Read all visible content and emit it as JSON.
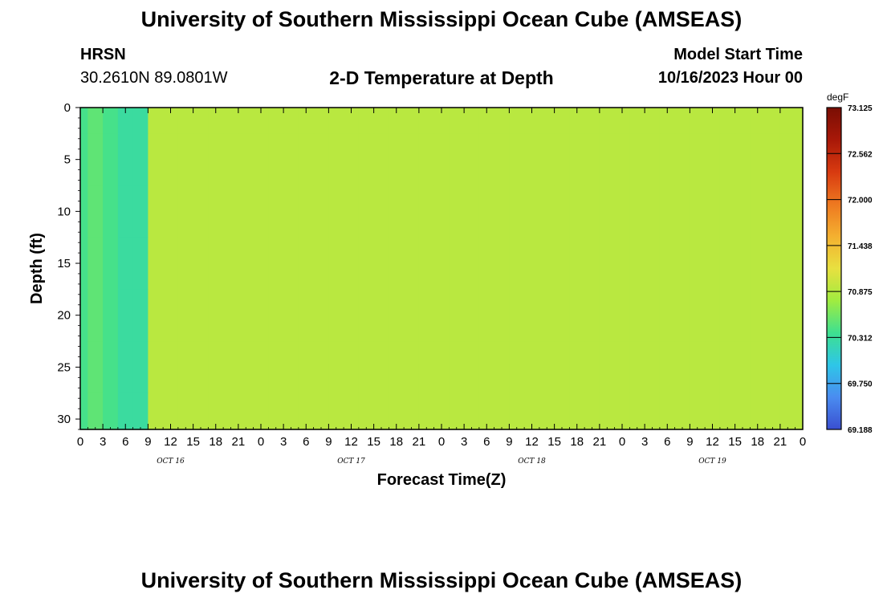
{
  "header": {
    "title": "University of Southern Mississippi Ocean Cube (AMSEAS)",
    "station": "HRSN",
    "coords": "30.2610N  89.0801W",
    "subtitle": "2-D Temperature at Depth",
    "start_label": "Model Start Time",
    "start_value": "10/16/2023 Hour 00"
  },
  "footer": {
    "title": "University of Southern Mississippi Ocean Cube (AMSEAS)"
  },
  "colors": {
    "scale": [
      "#3a4fd0",
      "#4a8cf0",
      "#2ec6e8",
      "#3ee090",
      "#a0ec40",
      "#e8e040",
      "#f4b030",
      "#ee7820",
      "#d83a10",
      "#a81808",
      "#7a0e04"
    ],
    "frame": "#000000"
  },
  "chart_data": {
    "type": "heatmap",
    "title": "2-D Temperature at Depth",
    "xlabel": "Forecast Time(Z)",
    "ylabel": "Depth (ft)",
    "x_range_hours": [
      0,
      96
    ],
    "y_range_ft": [
      0,
      31
    ],
    "x_tick_labels": [
      "0",
      "3",
      "6",
      "9",
      "12",
      "15",
      "18",
      "21",
      "0",
      "3",
      "6",
      "9",
      "12",
      "15",
      "18",
      "21",
      "0",
      "3",
      "6",
      "9",
      "12",
      "15",
      "18",
      "21",
      "0",
      "3",
      "6",
      "9",
      "12",
      "15",
      "18",
      "21",
      "0"
    ],
    "day_labels": [
      "OCT 16",
      "OCT 17",
      "OCT 18",
      "OCT 19"
    ],
    "y_ticks": [
      0,
      5,
      10,
      15,
      20,
      25,
      30
    ],
    "colorbar": {
      "unit": "degF",
      "min": 69.188,
      "max": 73.125,
      "tick_labels": [
        "73.125",
        "72.562",
        "72.000",
        "71.438",
        "70.875",
        "70.312",
        "69.750",
        "69.188"
      ]
    },
    "grid": false,
    "legend": "colorbar right",
    "hours": [
      0,
      2,
      4,
      6,
      8,
      10,
      12,
      14,
      16,
      18,
      20,
      22,
      24,
      26,
      28,
      30,
      32,
      34,
      36,
      38,
      40,
      42,
      44,
      46,
      48,
      50,
      52,
      54,
      56,
      58,
      60,
      62,
      64,
      66,
      68,
      70,
      72,
      74,
      76,
      78,
      80,
      82,
      84,
      86,
      88,
      90,
      92,
      94,
      96
    ],
    "depths_ft": [
      0,
      5,
      10,
      15,
      20,
      25,
      30
    ],
    "temperature_degF": [
      [
        70.4,
        70.5,
        70.4,
        70.3,
        70.3,
        70.9,
        70.9,
        70.9,
        70.9,
        70.9,
        70.9,
        70.9,
        70.9,
        70.9,
        70.9,
        70.9,
        70.9,
        70.9,
        70.9,
        70.9,
        70.9,
        70.9,
        70.9,
        70.9,
        70.9,
        70.9,
        70.9,
        70.9,
        70.9,
        70.9,
        70.9,
        70.9,
        70.9,
        70.9,
        70.9,
        70.9,
        70.9,
        70.9,
        70.9,
        70.9,
        70.9,
        70.9,
        70.9,
        70.9,
        70.9,
        70.9,
        70.9,
        70.9,
        70.9
      ],
      [
        70.4,
        70.5,
        70.4,
        70.3,
        70.3,
        70.9,
        70.9,
        70.9,
        70.9,
        70.9,
        70.9,
        70.9,
        70.9,
        70.9,
        70.9,
        70.9,
        70.9,
        70.9,
        70.9,
        70.9,
        70.9,
        70.9,
        70.9,
        70.9,
        70.9,
        70.9,
        70.9,
        70.9,
        70.9,
        70.9,
        70.9,
        70.9,
        70.9,
        70.9,
        70.9,
        70.9,
        70.9,
        70.9,
        70.9,
        70.9,
        70.9,
        70.9,
        70.9,
        70.9,
        70.9,
        70.9,
        70.9,
        70.9,
        70.9
      ],
      [
        70.4,
        70.5,
        70.4,
        70.3,
        70.3,
        70.9,
        70.9,
        70.9,
        70.9,
        70.9,
        70.9,
        70.9,
        70.9,
        70.9,
        70.9,
        70.9,
        70.9,
        70.9,
        70.9,
        70.9,
        70.9,
        70.9,
        70.9,
        70.9,
        70.9,
        70.9,
        70.9,
        70.9,
        70.9,
        70.9,
        70.9,
        70.9,
        70.9,
        70.9,
        70.9,
        70.9,
        70.9,
        70.9,
        70.9,
        70.9,
        70.9,
        70.9,
        70.9,
        70.9,
        70.9,
        70.9,
        70.9,
        70.9,
        70.9
      ],
      [
        70.4,
        70.5,
        70.4,
        70.3,
        70.3,
        70.9,
        70.9,
        70.9,
        70.9,
        70.9,
        70.9,
        70.9,
        70.9,
        70.9,
        70.9,
        70.9,
        70.9,
        70.9,
        70.9,
        70.9,
        70.9,
        70.9,
        70.9,
        70.9,
        70.9,
        70.9,
        70.9,
        70.9,
        70.9,
        70.9,
        70.9,
        70.9,
        70.9,
        70.9,
        70.9,
        70.9,
        70.9,
        70.9,
        70.9,
        70.9,
        70.9,
        70.9,
        70.9,
        70.9,
        70.9,
        70.9,
        70.9,
        70.9,
        70.9
      ],
      [
        70.4,
        70.5,
        70.4,
        70.3,
        70.3,
        70.9,
        70.9,
        70.9,
        70.9,
        70.9,
        70.9,
        70.9,
        70.9,
        70.9,
        70.9,
        70.9,
        70.9,
        70.9,
        70.9,
        70.9,
        70.9,
        70.9,
        70.9,
        70.9,
        70.9,
        70.9,
        70.9,
        70.9,
        70.9,
        70.9,
        70.9,
        70.9,
        70.9,
        70.9,
        70.9,
        70.9,
        70.9,
        70.9,
        70.9,
        70.9,
        70.9,
        70.9,
        70.9,
        70.9,
        70.9,
        70.9,
        70.9,
        70.9,
        70.9
      ],
      [
        70.4,
        70.5,
        70.4,
        70.3,
        70.3,
        70.9,
        70.9,
        70.9,
        70.9,
        70.9,
        70.9,
        70.9,
        70.9,
        70.9,
        70.9,
        70.9,
        70.9,
        70.9,
        70.9,
        70.9,
        70.9,
        70.9,
        70.9,
        70.9,
        70.9,
        70.9,
        70.9,
        70.9,
        70.9,
        70.9,
        70.9,
        70.9,
        70.9,
        70.9,
        70.9,
        70.9,
        70.9,
        70.9,
        70.9,
        70.9,
        70.9,
        70.9,
        70.9,
        70.9,
        70.9,
        70.9,
        70.9,
        70.9,
        70.9
      ],
      [
        70.4,
        70.5,
        70.4,
        70.3,
        70.3,
        70.9,
        70.9,
        70.9,
        70.9,
        70.9,
        70.9,
        70.9,
        70.9,
        70.9,
        70.9,
        70.9,
        70.9,
        70.9,
        70.9,
        70.9,
        70.9,
        70.9,
        70.9,
        70.9,
        70.9,
        70.9,
        70.9,
        70.9,
        70.9,
        70.9,
        70.9,
        70.9,
        70.9,
        70.9,
        70.9,
        70.9,
        70.9,
        70.9,
        70.9,
        70.9,
        70.9,
        70.9,
        70.9,
        70.9,
        70.9,
        70.9,
        70.9,
        70.9,
        70.9
      ]
    ]
  }
}
